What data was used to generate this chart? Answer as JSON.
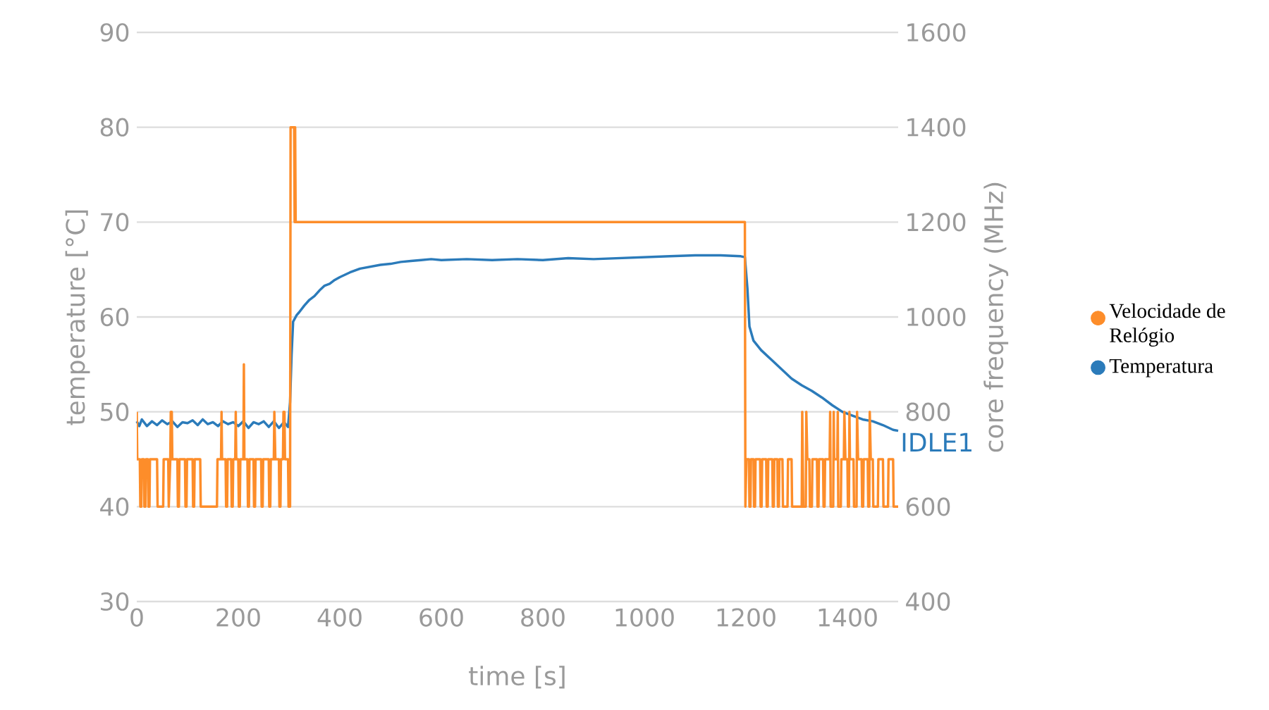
{
  "chart_data": {
    "type": "line",
    "xlabel": "time [s]",
    "ylabel": "temperature [°C]",
    "y2label": "core frequency (MHz)",
    "xlim": [
      0,
      1500
    ],
    "xticks": [
      0,
      200,
      400,
      600,
      800,
      1000,
      1200,
      1400
    ],
    "ylim": [
      30,
      90
    ],
    "yticks": [
      30,
      40,
      50,
      60,
      70,
      80,
      90
    ],
    "y2lim": [
      400,
      1600
    ],
    "y2ticks": [
      400,
      600,
      800,
      1000,
      1200,
      1400,
      1600
    ],
    "grid": "y",
    "legend": "right",
    "annotations": [
      {
        "text": "IDLE1",
        "x": 1500,
        "y": 48
      }
    ],
    "series": [
      {
        "name": "Velocidade de Relógio",
        "color": "#fd8d2a",
        "axis": "y2",
        "x": [
          0,
          1,
          6,
          7,
          9,
          10,
          14,
          15,
          17,
          18,
          22,
          23,
          25,
          26,
          40,
          41,
          52,
          53,
          62,
          63,
          66,
          67,
          69,
          70,
          80,
          81,
          83,
          84,
          95,
          96,
          98,
          99,
          110,
          111,
          113,
          114,
          125,
          126,
          158,
          159,
          166,
          167,
          168,
          175,
          176,
          178,
          179,
          186,
          187,
          189,
          190,
          194,
          195,
          196,
          200,
          201,
          203,
          204,
          210,
          211,
          212,
          218,
          219,
          221,
          222,
          230,
          231,
          233,
          234,
          245,
          246,
          248,
          249,
          260,
          261,
          263,
          264,
          270,
          271,
          273,
          280,
          281,
          283,
          284,
          288,
          289,
          291,
          292,
          298,
          299,
          302,
          303,
          310,
          311,
          312,
          313,
          1198,
          1199,
          1201,
          1206,
          1207,
          1209,
          1210,
          1215,
          1216,
          1218,
          1219,
          1228,
          1229,
          1231,
          1232,
          1240,
          1241,
          1243,
          1244,
          1252,
          1253,
          1255,
          1256,
          1262,
          1263,
          1265,
          1266,
          1272,
          1273,
          1282,
          1283,
          1290,
          1291,
          1310,
          1311,
          1313,
          1318,
          1319,
          1321,
          1325,
          1326,
          1330,
          1331,
          1340,
          1341,
          1343,
          1344,
          1352,
          1353,
          1355,
          1356,
          1365,
          1366,
          1367,
          1372,
          1373,
          1374,
          1380,
          1381,
          1382,
          1387,
          1388,
          1393,
          1394,
          1396,
          1400,
          1401,
          1403,
          1404,
          1405,
          1412,
          1413,
          1418,
          1419,
          1421,
          1428,
          1429,
          1431,
          1432,
          1440,
          1441,
          1443,
          1444,
          1446,
          1450,
          1451,
          1460,
          1461,
          1470,
          1471,
          1480,
          1481,
          1490,
          1491,
          1500
        ],
        "values": [
          800,
          700,
          700,
          600,
          600,
          700,
          700,
          600,
          600,
          700,
          700,
          600,
          600,
          700,
          700,
          600,
          600,
          700,
          700,
          600,
          700,
          800,
          800,
          700,
          700,
          600,
          600,
          700,
          700,
          600,
          600,
          700,
          700,
          600,
          600,
          700,
          700,
          600,
          600,
          700,
          700,
          800,
          700,
          700,
          600,
          600,
          700,
          700,
          600,
          600,
          700,
          700,
          800,
          700,
          700,
          600,
          600,
          700,
          700,
          900,
          700,
          700,
          600,
          600,
          700,
          700,
          600,
          600,
          700,
          700,
          600,
          600,
          700,
          700,
          600,
          600,
          700,
          700,
          800,
          700,
          700,
          600,
          600,
          700,
          700,
          800,
          800,
          700,
          700,
          600,
          600,
          1400,
          1400,
          1200,
          1400,
          1200,
          1200,
          600,
          700,
          700,
          600,
          600,
          700,
          700,
          600,
          600,
          700,
          700,
          600,
          600,
          700,
          700,
          600,
          600,
          700,
          700,
          600,
          600,
          700,
          700,
          600,
          600,
          700,
          700,
          600,
          600,
          700,
          700,
          600,
          600,
          800,
          600,
          600,
          800,
          700,
          700,
          600,
          600,
          700,
          700,
          600,
          600,
          700,
          700,
          600,
          600,
          700,
          700,
          800,
          600,
          600,
          800,
          700,
          700,
          800,
          600,
          600,
          700,
          700,
          800,
          700,
          700,
          600,
          600,
          800,
          700,
          700,
          600,
          600,
          800,
          700,
          700,
          600,
          600,
          700,
          700,
          600,
          600,
          800,
          700,
          700,
          600,
          600,
          700,
          700,
          600,
          600,
          700,
          700,
          600,
          600
        ]
      },
      {
        "name": "Temperatura",
        "color": "#2b7bba",
        "x": [
          0,
          5,
          10,
          20,
          30,
          40,
          50,
          60,
          70,
          80,
          90,
          100,
          110,
          120,
          130,
          140,
          150,
          160,
          170,
          180,
          190,
          200,
          210,
          220,
          230,
          240,
          250,
          260,
          270,
          280,
          290,
          298,
          302,
          305,
          308,
          315,
          320,
          330,
          340,
          350,
          360,
          370,
          380,
          390,
          400,
          420,
          440,
          460,
          480,
          500,
          520,
          540,
          560,
          580,
          600,
          650,
          700,
          750,
          800,
          850,
          900,
          950,
          1000,
          1050,
          1100,
          1150,
          1190,
          1198,
          1203,
          1207,
          1215,
          1230,
          1250,
          1270,
          1290,
          1310,
          1330,
          1350,
          1370,
          1390,
          1410,
          1430,
          1450,
          1470,
          1490,
          1500
        ],
        "values": [
          49.0,
          48.5,
          49.2,
          48.5,
          49.0,
          48.6,
          49.1,
          48.7,
          49.0,
          48.4,
          48.9,
          48.8,
          49.1,
          48.6,
          49.2,
          48.7,
          48.9,
          48.5,
          49.0,
          48.7,
          48.9,
          48.5,
          49.0,
          48.3,
          48.9,
          48.7,
          49.0,
          48.4,
          49.0,
          48.3,
          48.9,
          48.4,
          51,
          56,
          59.5,
          60.2,
          60.5,
          61.2,
          61.8,
          62.2,
          62.8,
          63.3,
          63.5,
          63.9,
          64.2,
          64.7,
          65.1,
          65.3,
          65.5,
          65.6,
          65.8,
          65.9,
          66.0,
          66.1,
          66.0,
          66.1,
          66.0,
          66.1,
          66.0,
          66.2,
          66.1,
          66.2,
          66.3,
          66.4,
          66.5,
          66.5,
          66.4,
          66.3,
          63,
          59,
          57.5,
          56.5,
          55.5,
          54.5,
          53.5,
          52.8,
          52.2,
          51.5,
          50.7,
          50.0,
          49.6,
          49.2,
          49.0,
          48.6,
          48.1,
          48.0
        ]
      }
    ]
  }
}
